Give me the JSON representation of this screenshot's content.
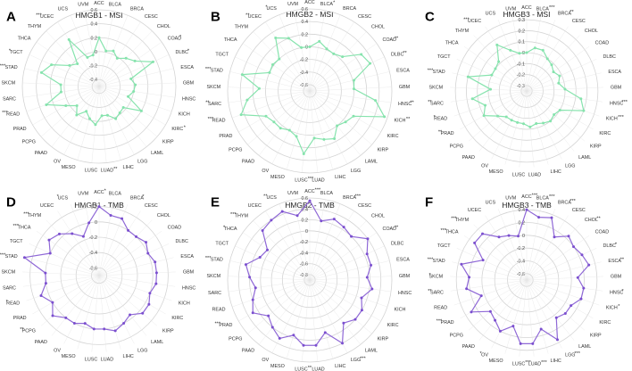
{
  "colors": {
    "msi_line": "#86e3ad",
    "msi_point": "#86e3ad",
    "tmb_line": "#8f68d6",
    "tmb_point": "#7b4fcf",
    "ring": "#d4d4d4"
  },
  "chart_data": [
    {
      "type": "radar",
      "panel": "A",
      "title": "HMGB1 - MSI",
      "rticks": [
        "0.6",
        "0.4",
        "0.2",
        "0",
        "-0.2",
        "-0.4"
      ],
      "rlim": [
        -0.5,
        0.6
      ],
      "categories": [
        "ACC",
        "BLCA",
        "BRCA",
        "CESC",
        "CHOL",
        "COAD",
        "DLBC",
        "ESCA",
        "GBM",
        "HNSC",
        "KICH",
        "KIRC",
        "KIRP",
        "LAML",
        "LGG",
        "LIHC",
        "LUAD",
        "LUSC",
        "MESO",
        "OV",
        "PAAD",
        "PCPG",
        "PRAD",
        "READ",
        "SARC",
        "SKCM",
        "STAD",
        "TGCT",
        "THCA",
        "THYM",
        "UCEC",
        "UCS",
        "UVM"
      ],
      "significance": [
        "",
        "",
        "",
        "",
        "",
        "*",
        "*",
        "",
        "",
        "",
        "",
        "*",
        "",
        "",
        "",
        "",
        "**",
        "",
        "",
        "",
        "",
        "",
        "",
        "***",
        "",
        "",
        "***",
        "*",
        "",
        "",
        "***",
        "",
        ""
      ],
      "values": [
        0.2,
        0.02,
        0.05,
        -0.02,
        0.06,
        0.13,
        0.35,
        -0.03,
        0.02,
        0.0,
        -0.06,
        0.2,
        -0.04,
        -0.02,
        0.02,
        -0.07,
        -0.08,
        0.05,
        -0.02,
        -0.1,
        0.02,
        -0.08,
        0.05,
        0.3,
        0.05,
        0.05,
        0.35,
        0.25,
        0.02,
        -0.05,
        0.3,
        -0.05,
        -0.04
      ]
    },
    {
      "type": "radar",
      "panel": "B",
      "title": "HMGB2 - MSI",
      "rticks": [
        "0.6",
        "0.4",
        "0.2",
        "0",
        "-0.2",
        "-0.4",
        "-0.6"
      ],
      "rlim": [
        -0.7,
        0.6
      ],
      "categories": [
        "ACC",
        "BLCA",
        "BRCA",
        "CESC",
        "CHOL",
        "COAD",
        "DLBC",
        "ESCA",
        "GBM",
        "HNSC",
        "KICH",
        "KIRC",
        "KIRP",
        "LAML",
        "LGG",
        "LIHC",
        "LUAD",
        "LUSC",
        "MESO",
        "OV",
        "PAAD",
        "PCPG",
        "PRAD",
        "READ",
        "SARC",
        "SKCM",
        "STAD",
        "TGCT",
        "THCA",
        "THYM",
        "UCEC",
        "UCS",
        "UVM"
      ],
      "significance": [
        "",
        "*",
        "",
        "",
        "",
        "**",
        "**",
        "",
        "",
        "**",
        "**",
        "",
        "",
        "",
        "",
        "",
        "",
        "***",
        "",
        "",
        "",
        "",
        "",
        "***",
        "**",
        "",
        "***",
        "",
        "",
        "",
        "**",
        "*",
        ""
      ],
      "values": [
        0.0,
        0.1,
        0.02,
        0.0,
        0.05,
        0.3,
        0.35,
        0.02,
        0.0,
        0.35,
        0.55,
        0.1,
        0.05,
        0.0,
        0.15,
        0.1,
        0.05,
        0.3,
        0.05,
        0.0,
        0.05,
        0.05,
        0.1,
        0.45,
        0.3,
        0.1,
        0.4,
        0.0,
        0.02,
        0.0,
        0.3,
        0.2,
        0.0
      ]
    },
    {
      "type": "radar",
      "panel": "C",
      "title": "HMGB3 - MSI",
      "rticks": [
        "0.3",
        "0.2",
        "0.1",
        "0",
        "-0.1",
        "-0.2",
        "-0.3"
      ],
      "rlim": [
        -0.35,
        0.35
      ],
      "categories": [
        "ACC",
        "BLCA",
        "BRCA",
        "CESC",
        "CHOL",
        "COAD",
        "DLBC",
        "ESCA",
        "GBM",
        "HNSC",
        "KICH",
        "KIRC",
        "KIRP",
        "LAML",
        "LGG",
        "LIHC",
        "LUAD",
        "LUSC",
        "MESO",
        "OV",
        "PAAD",
        "PCPG",
        "PRAD",
        "READ",
        "SARC",
        "SKCM",
        "STAD",
        "TGCT",
        "THCA",
        "THYM",
        "UCEC",
        "UCS",
        "UVM"
      ],
      "significance": [
        "",
        "***",
        "**",
        "",
        "",
        "",
        "",
        "",
        "",
        "***",
        "***",
        "",
        "",
        "",
        "",
        "",
        "",
        "",
        "",
        "",
        "",
        "",
        "**",
        "*",
        "**",
        "",
        "***",
        "",
        "",
        "",
        "***",
        "",
        ""
      ],
      "values": [
        0.0,
        0.05,
        0.05,
        0.0,
        -0.02,
        -0.05,
        -0.02,
        -0.05,
        0.0,
        0.15,
        0.2,
        0.0,
        -0.02,
        0.0,
        -0.02,
        -0.04,
        -0.02,
        -0.05,
        -0.05,
        -0.05,
        -0.05,
        0.0,
        0.1,
        0.05,
        0.15,
        -0.02,
        0.2,
        0.0,
        0.0,
        0.02,
        0.15,
        0.05,
        0.0
      ]
    },
    {
      "type": "radar",
      "panel": "D",
      "title": "HMGB1 - TMB",
      "rticks": [
        "0.2",
        "0",
        "-0.2",
        "-0.4",
        "-0.6"
      ],
      "rlim": [
        -0.7,
        0.3
      ],
      "categories": [
        "ACC",
        "BLCA",
        "BRCA",
        "CESC",
        "CHOL",
        "COAD",
        "DLBC",
        "ESCA",
        "GBM",
        "HNSC",
        "KICH",
        "KIRC",
        "KIRP",
        "LAML",
        "LGG",
        "LIHC",
        "LUAD",
        "LUSC",
        "MESO",
        "OV",
        "PAAD",
        "PCPG",
        "PRAD",
        "READ",
        "SARC",
        "SKCM",
        "STAD",
        "TGCT",
        "THCA",
        "THYM",
        "UCEC",
        "UCS",
        "UVM"
      ],
      "significance": [
        "*",
        "",
        "*",
        "",
        "",
        "",
        "",
        "",
        "",
        "",
        "",
        "",
        "",
        "",
        "",
        "",
        "",
        "",
        "",
        "",
        "",
        "**",
        "",
        "*",
        "",
        "",
        "***",
        "",
        "***",
        "***",
        "",
        "*",
        ""
      ],
      "values": [
        0.2,
        0.1,
        0.1,
        0.0,
        0.0,
        0.05,
        0.0,
        0.05,
        0.05,
        0.05,
        0.0,
        0.05,
        0.05,
        -0.05,
        0.0,
        0.05,
        0.0,
        0.0,
        -0.05,
        0.0,
        0.0,
        0.1,
        0.0,
        0.1,
        0.0,
        0.0,
        0.3,
        0.0,
        0.1,
        0.05,
        -0.05,
        -0.15,
        0.0
      ]
    },
    {
      "type": "radar",
      "panel": "E",
      "title": "HMGB2 - TMB",
      "rticks": [
        "0.6",
        "0.4",
        "0.2",
        "0",
        "-0.2",
        "-0.4",
        "-0.6",
        "-0.8"
      ],
      "rlim": [
        -0.9,
        0.6
      ],
      "categories": [
        "ACC",
        "BLCA",
        "BRCA",
        "CESC",
        "CHOL",
        "COAD",
        "DLBC",
        "ESCA",
        "GBM",
        "HNSC",
        "KICH",
        "KIRC",
        "KIRP",
        "LAML",
        "LGG",
        "LIHC",
        "LUAD",
        "LUSC",
        "MESO",
        "OV",
        "PAAD",
        "PCPG",
        "PRAD",
        "READ",
        "SARC",
        "SKCM",
        "STAD",
        "TGCT",
        "THCA",
        "THYM",
        "UCEC",
        "UCS",
        "UVM"
      ],
      "significance": [
        "***",
        "",
        "***",
        "",
        "",
        "**",
        "",
        "",
        "",
        "",
        "",
        "",
        "",
        "",
        "***",
        "",
        "",
        "**",
        "",
        "",
        "",
        "",
        "***",
        "",
        "",
        "",
        "***",
        "",
        "*",
        "***",
        "",
        "**",
        ""
      ],
      "values": [
        0.55,
        0.2,
        0.3,
        0.25,
        0.2,
        0.4,
        0.25,
        0.25,
        0.15,
        0.25,
        0.1,
        0.2,
        0.2,
        0.1,
        0.4,
        0.1,
        0.3,
        0.3,
        0.15,
        0.3,
        0.2,
        0.1,
        0.3,
        0.2,
        0.1,
        0.2,
        0.3,
        0.1,
        0.05,
        0.35,
        0.4,
        0.45,
        0.3
      ]
    },
    {
      "type": "radar",
      "panel": "F",
      "title": "HMGB3 - TMB",
      "rticks": [
        "0.4",
        "0.2",
        "0",
        "-0.2",
        "-0.4",
        "-0.6"
      ],
      "rlim": [
        -0.7,
        0.5
      ],
      "categories": [
        "ACC",
        "BLCA",
        "BRCA",
        "CESC",
        "CHOL",
        "COAD",
        "DLBC",
        "ESCA",
        "GBM",
        "HNSC",
        "KICH",
        "KIRC",
        "KIRP",
        "LAML",
        "LGG",
        "LIHC",
        "LUAD",
        "LUSC",
        "MESO",
        "OV",
        "PAAD",
        "PCPG",
        "PRAD",
        "READ",
        "SARC",
        "SKCM",
        "STAD",
        "TGCT",
        "THCA",
        "THYM",
        "UCEC",
        "UCS",
        "UVM"
      ],
      "significance": [
        "***",
        "***",
        "***",
        "",
        "**",
        "",
        "*",
        "**",
        "",
        "*",
        "*",
        "",
        "",
        "",
        "***",
        "",
        "***",
        "***",
        "",
        "*",
        "",
        "",
        "***",
        "",
        "**",
        "*",
        "***",
        "",
        "***",
        "***",
        "",
        "",
        ""
      ],
      "values": [
        0.4,
        0.3,
        0.35,
        0.1,
        0.25,
        0.2,
        0.25,
        0.3,
        0.1,
        0.2,
        0.2,
        0.1,
        0.1,
        0.05,
        0.35,
        0.1,
        0.3,
        0.3,
        0.05,
        0.2,
        0.1,
        0.05,
        0.3,
        0.05,
        0.25,
        0.2,
        0.35,
        0.05,
        0.3,
        0.3,
        0.1,
        0.05,
        0.0
      ]
    }
  ]
}
